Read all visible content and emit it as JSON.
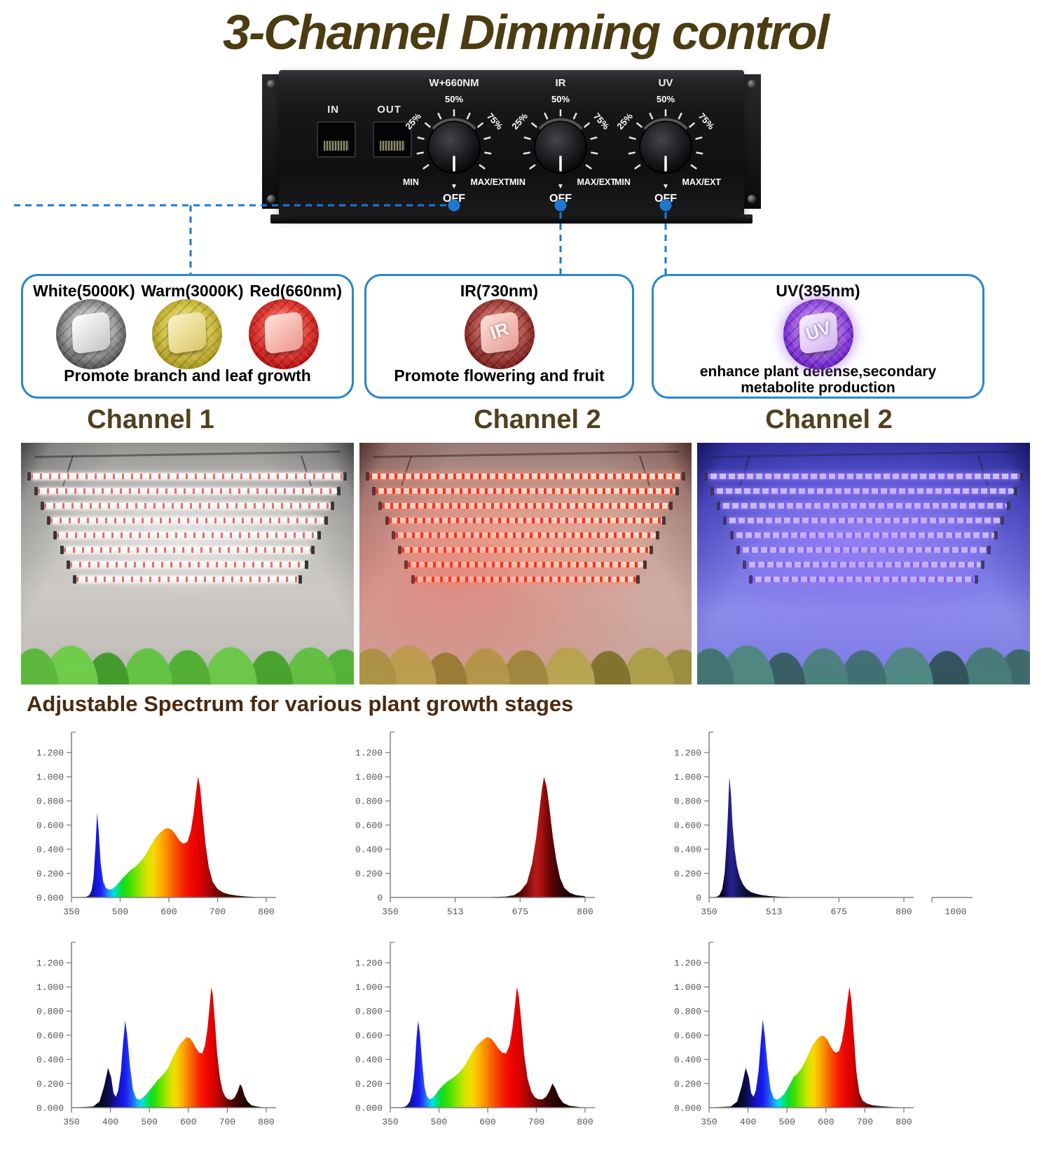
{
  "title": "3-Channel Dimming control",
  "colors": {
    "accent_blue": "#2e86cb",
    "connector_blue": "#1e78d2",
    "title_brown": "#4b3c12",
    "channel_brown": "#52401e",
    "heading_brown": "#4a2a10"
  },
  "controller": {
    "port_in": "IN",
    "port_out": "OUT",
    "knobs": [
      {
        "label": "W+660NM"
      },
      {
        "label": "IR"
      },
      {
        "label": "UV"
      }
    ],
    "knob_scale": {
      "p25": "25%",
      "p50": "50%",
      "p75": "75%",
      "min": "MIN",
      "max": "MAX/EXT",
      "off": "OFF",
      "off_marker": "▼"
    }
  },
  "feature_boxes": [
    {
      "headers": [
        "White(5000K)",
        "Warm(3000K)",
        "Red(660nm)"
      ],
      "chip_texts": [
        "",
        "",
        ""
      ],
      "description": "Promote branch and leaf growth",
      "description2": ""
    },
    {
      "headers": [
        "IR(730nm)"
      ],
      "chip_texts": [
        "IR"
      ],
      "description": "Promote flowering and fruit",
      "description2": ""
    },
    {
      "headers": [
        "UV(395nm)"
      ],
      "chip_texts": [
        "UV"
      ],
      "description": "enhance plant defense,secondary",
      "description2": "metabolite production"
    }
  ],
  "channel_labels": [
    "Channel 1",
    "Channel 2",
    "Channel 2"
  ],
  "spectrum_heading": "Adjustable Spectrum for various plant growth stages",
  "chart_data": [
    {
      "name": "channel1-white-red-spectrum",
      "type": "area",
      "xticks": [
        350,
        500,
        600,
        700,
        800
      ],
      "ylim": [
        0,
        1.2
      ],
      "ytick_step": 0.2,
      "zero_label": "0.000",
      "palette": "rainbow",
      "points": [
        [
          350,
          0
        ],
        [
          395,
          0.005
        ],
        [
          405,
          0.02
        ],
        [
          412,
          0.06
        ],
        [
          418,
          0.16
        ],
        [
          424,
          0.42
        ],
        [
          429,
          0.7
        ],
        [
          434,
          0.55
        ],
        [
          440,
          0.28
        ],
        [
          448,
          0.13
        ],
        [
          456,
          0.08
        ],
        [
          465,
          0.065
        ],
        [
          475,
          0.07
        ],
        [
          485,
          0.09
        ],
        [
          495,
          0.12
        ],
        [
          505,
          0.16
        ],
        [
          515,
          0.2
        ],
        [
          522,
          0.23
        ],
        [
          530,
          0.25
        ],
        [
          540,
          0.29
        ],
        [
          550,
          0.34
        ],
        [
          560,
          0.41
        ],
        [
          570,
          0.48
        ],
        [
          580,
          0.53
        ],
        [
          590,
          0.565
        ],
        [
          598,
          0.575
        ],
        [
          606,
          0.56
        ],
        [
          614,
          0.52
        ],
        [
          622,
          0.47
        ],
        [
          630,
          0.445
        ],
        [
          638,
          0.46
        ],
        [
          645,
          0.55
        ],
        [
          651,
          0.7
        ],
        [
          656,
          0.88
        ],
        [
          660,
          1.0
        ],
        [
          664,
          0.92
        ],
        [
          669,
          0.7
        ],
        [
          675,
          0.45
        ],
        [
          682,
          0.25
        ],
        [
          690,
          0.13
        ],
        [
          700,
          0.07
        ],
        [
          712,
          0.04
        ],
        [
          725,
          0.025
        ],
        [
          740,
          0.015
        ],
        [
          760,
          0.008
        ],
        [
          800,
          0
        ]
      ]
    },
    {
      "name": "channel2-ir-730nm-spectrum",
      "type": "area",
      "xticks": [
        350,
        513,
        675,
        800
      ],
      "ylim": [
        0,
        1.2
      ],
      "ytick_step": 0.2,
      "zero_label": "0",
      "palette": "ir",
      "points": [
        [
          350,
          0
        ],
        [
          600,
          0.003
        ],
        [
          640,
          0.008
        ],
        [
          660,
          0.02
        ],
        [
          675,
          0.05
        ],
        [
          688,
          0.12
        ],
        [
          698,
          0.28
        ],
        [
          706,
          0.5
        ],
        [
          712,
          0.72
        ],
        [
          717,
          0.9
        ],
        [
          721,
          1.0
        ],
        [
          726,
          0.92
        ],
        [
          732,
          0.72
        ],
        [
          738,
          0.5
        ],
        [
          745,
          0.3
        ],
        [
          752,
          0.16
        ],
        [
          760,
          0.08
        ],
        [
          770,
          0.04
        ],
        [
          782,
          0.02
        ],
        [
          800,
          0.01
        ]
      ]
    },
    {
      "name": "channel2-uv-395nm-spectrum",
      "type": "area",
      "xticks": [
        350,
        513,
        675,
        800
      ],
      "extra_xtick": "1000",
      "ylim": [
        0,
        1.2
      ],
      "ytick_step": 0.2,
      "zero_label": "0",
      "palette": "uv",
      "points": [
        [
          350,
          0
        ],
        [
          368,
          0.005
        ],
        [
          376,
          0.02
        ],
        [
          383,
          0.07
        ],
        [
          389,
          0.2
        ],
        [
          394,
          0.45
        ],
        [
          398,
          0.75
        ],
        [
          401,
          1.0
        ],
        [
          405,
          0.85
        ],
        [
          409,
          0.6
        ],
        [
          414,
          0.4
        ],
        [
          420,
          0.26
        ],
        [
          427,
          0.17
        ],
        [
          435,
          0.11
        ],
        [
          444,
          0.07
        ],
        [
          455,
          0.045
        ],
        [
          468,
          0.03
        ],
        [
          482,
          0.02
        ],
        [
          500,
          0.012
        ],
        [
          530,
          0.006
        ],
        [
          560,
          0.003
        ],
        [
          600,
          0.002
        ],
        [
          800,
          0
        ]
      ]
    },
    {
      "name": "full-spectrum-with-uv-and-ir",
      "type": "area",
      "xticks": [
        350,
        400,
        500,
        600,
        700,
        800
      ],
      "ylim": [
        0,
        1.2
      ],
      "ytick_step": 0.2,
      "zero_label": "0.000",
      "palette": "rainbow",
      "points": [
        [
          350,
          0
        ],
        [
          378,
          0.01
        ],
        [
          386,
          0.05
        ],
        [
          392,
          0.18
        ],
        [
          397,
          0.33
        ],
        [
          402,
          0.25
        ],
        [
          408,
          0.12
        ],
        [
          414,
          0.09
        ],
        [
          420,
          0.14
        ],
        [
          427,
          0.3
        ],
        [
          433,
          0.55
        ],
        [
          438,
          0.72
        ],
        [
          443,
          0.6
        ],
        [
          450,
          0.35
        ],
        [
          458,
          0.15
        ],
        [
          466,
          0.08
        ],
        [
          474,
          0.065
        ],
        [
          482,
          0.08
        ],
        [
          492,
          0.11
        ],
        [
          502,
          0.15
        ],
        [
          512,
          0.19
        ],
        [
          520,
          0.225
        ],
        [
          528,
          0.25
        ],
        [
          538,
          0.285
        ],
        [
          548,
          0.33
        ],
        [
          558,
          0.4
        ],
        [
          568,
          0.47
        ],
        [
          578,
          0.525
        ],
        [
          588,
          0.56
        ],
        [
          596,
          0.585
        ],
        [
          604,
          0.575
        ],
        [
          612,
          0.54
        ],
        [
          620,
          0.49
        ],
        [
          628,
          0.455
        ],
        [
          636,
          0.45
        ],
        [
          643,
          0.52
        ],
        [
          649,
          0.65
        ],
        [
          654,
          0.82
        ],
        [
          659,
          1.0
        ],
        [
          663,
          0.93
        ],
        [
          668,
          0.72
        ],
        [
          674,
          0.45
        ],
        [
          681,
          0.25
        ],
        [
          688,
          0.14
        ],
        [
          695,
          0.09
        ],
        [
          702,
          0.07
        ],
        [
          710,
          0.065
        ],
        [
          718,
          0.08
        ],
        [
          726,
          0.13
        ],
        [
          733,
          0.195
        ],
        [
          738,
          0.17
        ],
        [
          744,
          0.1
        ],
        [
          752,
          0.05
        ],
        [
          762,
          0.02
        ],
        [
          775,
          0.01
        ],
        [
          800,
          0
        ]
      ]
    },
    {
      "name": "full-spectrum-with-ir",
      "type": "area",
      "xticks": [
        350,
        500,
        600,
        700,
        800
      ],
      "ylim": [
        0,
        1.2
      ],
      "ytick_step": 0.2,
      "zero_label": "0.000",
      "palette": "rainbow",
      "points": [
        [
          350,
          0
        ],
        [
          392,
          0.005
        ],
        [
          402,
          0.02
        ],
        [
          410,
          0.05
        ],
        [
          418,
          0.13
        ],
        [
          425,
          0.32
        ],
        [
          431,
          0.58
        ],
        [
          436,
          0.72
        ],
        [
          441,
          0.62
        ],
        [
          448,
          0.38
        ],
        [
          455,
          0.18
        ],
        [
          462,
          0.1
        ],
        [
          470,
          0.07
        ],
        [
          480,
          0.08
        ],
        [
          490,
          0.11
        ],
        [
          500,
          0.15
        ],
        [
          510,
          0.19
        ],
        [
          520,
          0.225
        ],
        [
          530,
          0.25
        ],
        [
          540,
          0.285
        ],
        [
          550,
          0.33
        ],
        [
          560,
          0.4
        ],
        [
          570,
          0.47
        ],
        [
          580,
          0.525
        ],
        [
          590,
          0.56
        ],
        [
          598,
          0.585
        ],
        [
          606,
          0.575
        ],
        [
          614,
          0.54
        ],
        [
          622,
          0.49
        ],
        [
          630,
          0.455
        ],
        [
          638,
          0.45
        ],
        [
          645,
          0.52
        ],
        [
          651,
          0.66
        ],
        [
          656,
          0.84
        ],
        [
          660,
          1.0
        ],
        [
          664,
          0.92
        ],
        [
          669,
          0.71
        ],
        [
          675,
          0.44
        ],
        [
          682,
          0.24
        ],
        [
          690,
          0.13
        ],
        [
          697,
          0.085
        ],
        [
          704,
          0.07
        ],
        [
          712,
          0.068
        ],
        [
          720,
          0.09
        ],
        [
          727,
          0.14
        ],
        [
          733,
          0.2
        ],
        [
          739,
          0.16
        ],
        [
          746,
          0.09
        ],
        [
          755,
          0.04
        ],
        [
          768,
          0.015
        ],
        [
          800,
          0
        ]
      ]
    },
    {
      "name": "full-spectrum-with-uv",
      "type": "area",
      "xticks": [
        350,
        400,
        500,
        600,
        700,
        800
      ],
      "ylim": [
        0,
        1.2
      ],
      "ytick_step": 0.2,
      "zero_label": "0.000",
      "palette": "rainbow",
      "points": [
        [
          350,
          0
        ],
        [
          378,
          0.01
        ],
        [
          386,
          0.05
        ],
        [
          392,
          0.18
        ],
        [
          397,
          0.33
        ],
        [
          402,
          0.25
        ],
        [
          408,
          0.12
        ],
        [
          414,
          0.09
        ],
        [
          420,
          0.14
        ],
        [
          427,
          0.3
        ],
        [
          433,
          0.55
        ],
        [
          438,
          0.73
        ],
        [
          443,
          0.6
        ],
        [
          450,
          0.35
        ],
        [
          458,
          0.15
        ],
        [
          466,
          0.08
        ],
        [
          474,
          0.065
        ],
        [
          482,
          0.08
        ],
        [
          492,
          0.11
        ],
        [
          502,
          0.16
        ],
        [
          510,
          0.21
        ],
        [
          518,
          0.26
        ],
        [
          526,
          0.28
        ],
        [
          536,
          0.32
        ],
        [
          546,
          0.38
        ],
        [
          556,
          0.45
        ],
        [
          566,
          0.52
        ],
        [
          576,
          0.565
        ],
        [
          584,
          0.59
        ],
        [
          594,
          0.595
        ],
        [
          602,
          0.57
        ],
        [
          610,
          0.52
        ],
        [
          618,
          0.475
        ],
        [
          626,
          0.455
        ],
        [
          634,
          0.47
        ],
        [
          641,
          0.55
        ],
        [
          648,
          0.68
        ],
        [
          654,
          0.85
        ],
        [
          660,
          1.0
        ],
        [
          665,
          0.9
        ],
        [
          671,
          0.62
        ],
        [
          678,
          0.3
        ],
        [
          686,
          0.12
        ],
        [
          694,
          0.06
        ],
        [
          705,
          0.035
        ],
        [
          720,
          0.02
        ],
        [
          740,
          0.012
        ],
        [
          770,
          0.006
        ],
        [
          800,
          0
        ]
      ]
    }
  ],
  "palettes": {
    "rainbow": [
      [
        350,
        "#000004"
      ],
      [
        386,
        "#05051e"
      ],
      [
        396,
        "#0b0b40"
      ],
      [
        408,
        "#10108c"
      ],
      [
        422,
        "#1414cc"
      ],
      [
        438,
        "#1c1cf0"
      ],
      [
        452,
        "#2050f4"
      ],
      [
        466,
        "#18a0f2"
      ],
      [
        479,
        "#00dcf0"
      ],
      [
        491,
        "#00e67e"
      ],
      [
        504,
        "#0cdc2c"
      ],
      [
        519,
        "#3ce000"
      ],
      [
        537,
        "#8ce400"
      ],
      [
        554,
        "#d6e400"
      ],
      [
        568,
        "#f6da00"
      ],
      [
        582,
        "#fcb400"
      ],
      [
        595,
        "#fc8e00"
      ],
      [
        607,
        "#fa6600"
      ],
      [
        619,
        "#f84000"
      ],
      [
        632,
        "#f61c00"
      ],
      [
        648,
        "#ee0600"
      ],
      [
        661,
        "#e20000"
      ],
      [
        671,
        "#c60404"
      ],
      [
        683,
        "#a40707"
      ],
      [
        695,
        "#800707"
      ],
      [
        709,
        "#5e0505"
      ],
      [
        724,
        "#3e0303"
      ],
      [
        744,
        "#240101"
      ],
      [
        768,
        "#110000"
      ],
      [
        800,
        "#020000"
      ]
    ],
    "ir": [
      [
        350,
        "#000000"
      ],
      [
        640,
        "#1c0101"
      ],
      [
        672,
        "#4a0404"
      ],
      [
        692,
        "#8c0d0d"
      ],
      [
        706,
        "#b81a1a"
      ],
      [
        716,
        "#a81212"
      ],
      [
        726,
        "#7c0808"
      ],
      [
        738,
        "#550404"
      ],
      [
        752,
        "#330202"
      ],
      [
        768,
        "#1a0101"
      ],
      [
        800,
        "#000000"
      ]
    ],
    "uv": [
      [
        350,
        "#000002"
      ],
      [
        378,
        "#05051c"
      ],
      [
        390,
        "#0e0e46"
      ],
      [
        398,
        "#1b1b7e"
      ],
      [
        406,
        "#24248e"
      ],
      [
        416,
        "#1d1d74"
      ],
      [
        428,
        "#151552"
      ],
      [
        442,
        "#0d0d38"
      ],
      [
        460,
        "#080822"
      ],
      [
        485,
        "#040412"
      ],
      [
        520,
        "#020208"
      ],
      [
        800,
        "#000000"
      ]
    ]
  }
}
